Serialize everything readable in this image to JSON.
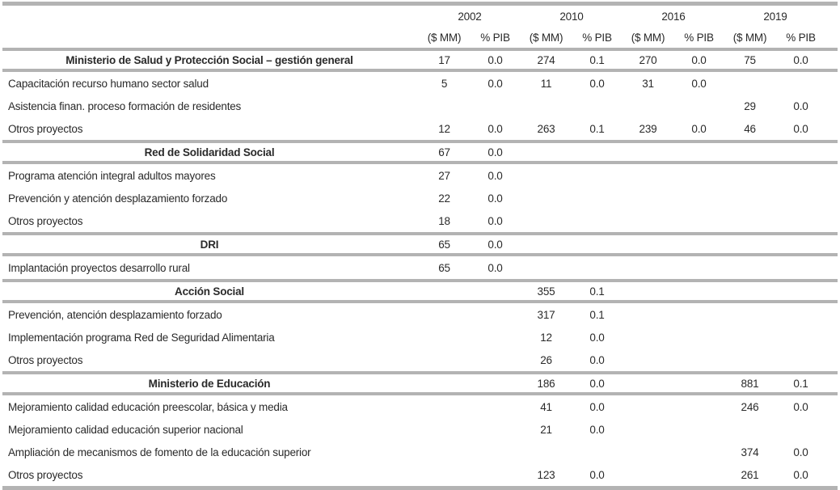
{
  "colors": {
    "divider": "#b3b3b3",
    "text": "#2a2a2a",
    "background": "#ffffff"
  },
  "columns": {
    "years": [
      "2002",
      "2010",
      "2016",
      "2019"
    ],
    "subheaders": [
      "($ MM)",
      "% PIB"
    ]
  },
  "rows": [
    {
      "type": "section",
      "label": "Ministerio de Salud y Protección Social – gestión general",
      "values": [
        "17",
        "0.0",
        "274",
        "0.1",
        "270",
        "0.0",
        "75",
        "0.0"
      ]
    },
    {
      "type": "item",
      "label": "Capacitación recurso humano sector salud",
      "values": [
        "5",
        "0.0",
        "11",
        "0.0",
        "31",
        "0.0",
        "",
        ""
      ]
    },
    {
      "type": "item",
      "label": "Asistencia finan. proceso formación de residentes",
      "values": [
        "",
        "",
        "",
        "",
        "",
        "",
        "29",
        "0.0"
      ]
    },
    {
      "type": "item",
      "label": "Otros proyectos",
      "values": [
        "12",
        "0.0",
        "263",
        "0.1",
        "239",
        "0.0",
        "46",
        "0.0"
      ]
    },
    {
      "type": "section",
      "label": "Red de Solidaridad Social",
      "values": [
        "67",
        "0.0",
        "",
        "",
        "",
        "",
        "",
        ""
      ]
    },
    {
      "type": "item",
      "label": "Programa atención integral adultos mayores",
      "values": [
        "27",
        "0.0",
        "",
        "",
        "",
        "",
        "",
        ""
      ]
    },
    {
      "type": "item",
      "label": "Prevención y atención desplazamiento forzado",
      "values": [
        "22",
        "0.0",
        "",
        "",
        "",
        "",
        "",
        ""
      ]
    },
    {
      "type": "item",
      "label": "Otros proyectos",
      "values": [
        "18",
        "0.0",
        "",
        "",
        "",
        "",
        "",
        ""
      ]
    },
    {
      "type": "section",
      "label": "DRI",
      "values": [
        "65",
        "0.0",
        "",
        "",
        "",
        "",
        "",
        ""
      ]
    },
    {
      "type": "item",
      "label": "Implantación proyectos desarrollo rural",
      "values": [
        "65",
        "0.0",
        "",
        "",
        "",
        "",
        "",
        ""
      ]
    },
    {
      "type": "section",
      "label": "Acción Social",
      "values": [
        "",
        "",
        "355",
        "0.1",
        "",
        "",
        "",
        ""
      ]
    },
    {
      "type": "item",
      "label": "Prevención, atención desplazamiento forzado",
      "values": [
        "",
        "",
        "317",
        "0.1",
        "",
        "",
        "",
        ""
      ]
    },
    {
      "type": "item",
      "label": "Implementación programa Red de Seguridad Alimentaria",
      "values": [
        "",
        "",
        "12",
        "0.0",
        "",
        "",
        "",
        ""
      ]
    },
    {
      "type": "item",
      "label": "Otros proyectos",
      "values": [
        "",
        "",
        "26",
        "0.0",
        "",
        "",
        "",
        ""
      ]
    },
    {
      "type": "section",
      "label": "Ministerio de Educación",
      "values": [
        "",
        "",
        "186",
        "0.0",
        "",
        "",
        "881",
        "0.1"
      ]
    },
    {
      "type": "item",
      "label": "Mejoramiento calidad educación preescolar, básica y media",
      "values": [
        "",
        "",
        "41",
        "0.0",
        "",
        "",
        "246",
        "0.0"
      ]
    },
    {
      "type": "item",
      "label": "Mejoramiento calidad educación superior nacional",
      "values": [
        "",
        "",
        "21",
        "0.0",
        "",
        "",
        "",
        ""
      ]
    },
    {
      "type": "item",
      "label": "Ampliación de mecanismos de fomento de la educación superior",
      "values": [
        "",
        "",
        "",
        "",
        "",
        "",
        "374",
        "0.0"
      ]
    },
    {
      "type": "item",
      "label": "Otros proyectos",
      "values": [
        "",
        "",
        "123",
        "0.0",
        "",
        "",
        "261",
        "0.0"
      ]
    }
  ]
}
